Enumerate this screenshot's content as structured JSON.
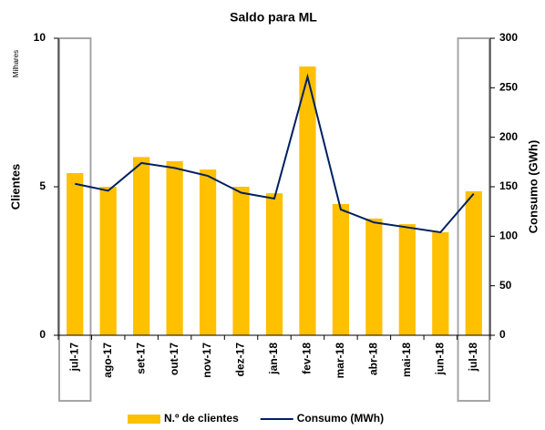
{
  "chart_data": {
    "type": "bar_line",
    "title": "Saldo para ML",
    "y_label": "Clientes",
    "y_unit_label": "Milhares",
    "y2_label": "Consumo (GWh)",
    "categories": [
      "jul-17",
      "ago-17",
      "set-17",
      "out-17",
      "nov-17",
      "dez-17",
      "jan-18",
      "fev-18",
      "mar-18",
      "abr-18",
      "mai-18",
      "jun-18",
      "jul-18"
    ],
    "series": [
      {
        "name": "N.º de clientes",
        "color": "#ffc000",
        "type": "bar",
        "values": [
          5.46,
          5.0,
          6.0,
          5.86,
          5.58,
          5.0,
          4.78,
          9.05,
          4.42,
          3.93,
          3.74,
          3.47,
          4.85
        ]
      },
      {
        "name": "Consumo (MWh)",
        "color": "#002060",
        "type": "line",
        "axis": "y2",
        "values": [
          153,
          146,
          174,
          169,
          161,
          144,
          138,
          261,
          127,
          114,
          109,
          104,
          143
        ]
      }
    ],
    "ylim": [
      0,
      10
    ],
    "yticks": [
      0,
      5,
      10
    ],
    "y2lim": [
      0,
      300
    ],
    "y2ticks": [
      0,
      50,
      100,
      150,
      200,
      250,
      300
    ],
    "legend": "bottom"
  }
}
